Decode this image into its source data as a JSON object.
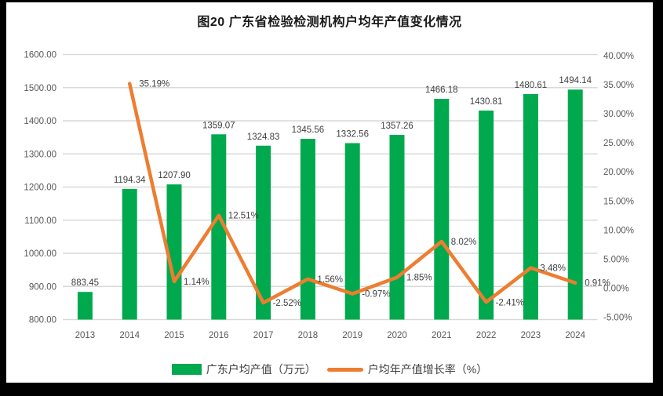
{
  "title": "图20 广东省检验检测机构户均年产值变化情况",
  "colors": {
    "bar": "#00A94E",
    "line": "#ED7D31",
    "grid": "#D9D9D9",
    "axis_text": "#595959",
    "data_label_text": "#3F3F3F",
    "title_text": "#1A1A1A",
    "frame": "#000000",
    "background": "#FFFFFF"
  },
  "chart_data": {
    "type": "bar",
    "subtype": "bar-line-combo",
    "title": "图20 广东省检验检测机构户均年产值变化情况",
    "categories": [
      "2013",
      "2014",
      "2015",
      "2016",
      "2017",
      "2018",
      "2019",
      "2020",
      "2021",
      "2022",
      "2023",
      "2024"
    ],
    "series": [
      {
        "name": "广东户均产值（万元）",
        "type": "bar",
        "axis": "left",
        "values": [
          883.45,
          1194.34,
          1207.9,
          1359.07,
          1324.83,
          1345.56,
          1332.56,
          1357.26,
          1466.18,
          1430.81,
          1480.61,
          1494.14
        ],
        "labels": [
          "883.45",
          "1194.34",
          "1207.90",
          "1359.07",
          "1324.83",
          "1345.56",
          "1332.56",
          "1357.26",
          "1466.18",
          "1430.81",
          "1480.61",
          "1494.14"
        ]
      },
      {
        "name": "户均年产值增长率（%）",
        "type": "line",
        "axis": "right",
        "values": [
          null,
          35.19,
          1.14,
          12.51,
          -2.52,
          1.56,
          -0.97,
          1.85,
          8.02,
          -2.41,
          3.48,
          0.91
        ],
        "labels": [
          null,
          "35.19%",
          "1.14%",
          "12.51%",
          "-2.52%",
          "1.56%",
          "-0.97%",
          "1.85%",
          "8.02%",
          "-2.41%",
          "3.48%",
          "0.91%"
        ]
      }
    ],
    "left_axis": {
      "min": 800,
      "max": 1600,
      "step": 100,
      "ticks": [
        "1600.00",
        "1500.00",
        "1400.00",
        "1300.00",
        "1200.00",
        "1100.00",
        "1000.00",
        "900.00",
        "800.00"
      ]
    },
    "right_axis": {
      "min": -5,
      "max": 40,
      "step": 5,
      "ticks": [
        "40.00%",
        "35.00%",
        "30.00%",
        "25.00%",
        "20.00%",
        "15.00%",
        "10.00%",
        "5.00%",
        "0.00%",
        "-5.00%"
      ]
    },
    "grid": true,
    "legend_position": "bottom",
    "legend": [
      "广东户均产值（万元）",
      "户均年产值增长率（%）"
    ]
  }
}
